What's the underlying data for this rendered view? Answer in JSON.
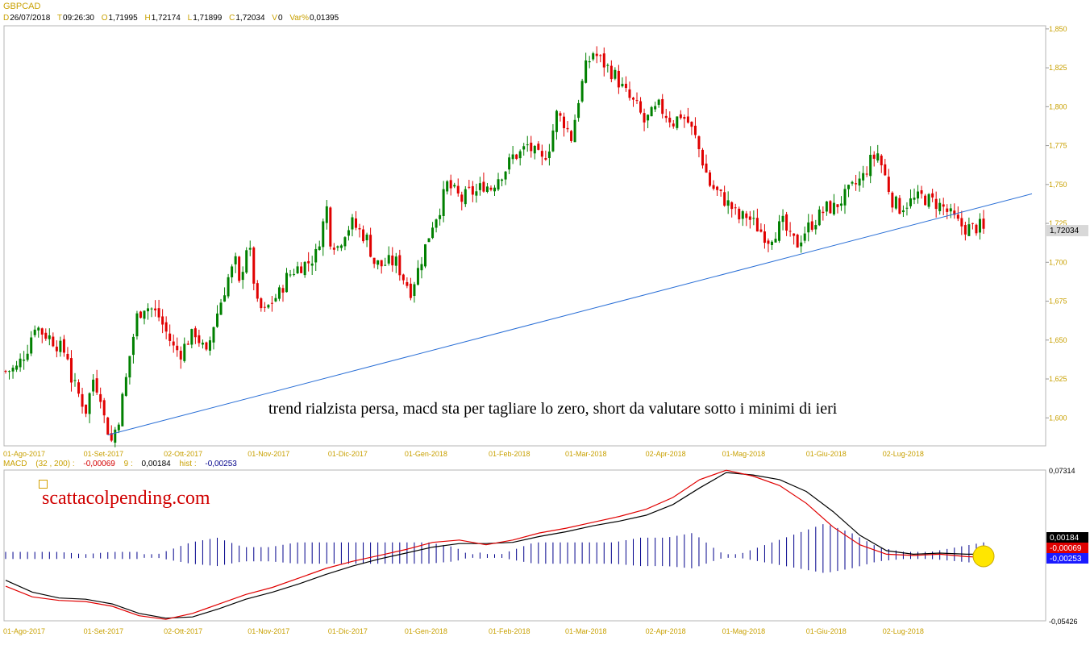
{
  "symbol": "GBPCAD",
  "ohlc": {
    "date_label": "D",
    "date": "26/07/2018",
    "time_label": "T",
    "time": "09:26:30",
    "open_label": "O",
    "open": "1,71995",
    "high_label": "H",
    "high": "1,72174",
    "low_label": "L",
    "low": "1,71899",
    "close_label": "C",
    "close": "1,72034",
    "volume_label": "V",
    "volume": "0",
    "var_label": "Var%",
    "var": "0,01395"
  },
  "macd_header": {
    "name": "MACD",
    "params": "(32 , 200) :",
    "macd_value": "-0,00069",
    "signal_label": "9 :",
    "signal_value": "0,00184",
    "hist_label": "hist :",
    "hist_value": "-0,00253"
  },
  "annotation": "trend rialzista persa, macd sta per tagliare lo zero, short da valutare sotto i minimi di ieri",
  "brand": "scattacolpending.com",
  "colors": {
    "up": "#008000",
    "down": "#e00000",
    "trendline": "#2a6fd6",
    "macd": "#e00000",
    "signal": "#000000",
    "hist": "#00008b",
    "label_text": "#c8a000",
    "highlight": "#ffe600"
  },
  "chart_data": [
    {
      "type": "candlestick",
      "title": "GBPCAD",
      "x_tick_labels": [
        "01-Ago-2017",
        "01-Set-2017",
        "02-Ott-2017",
        "01-Nov-2017",
        "01-Dic-2017",
        "01-Gen-2018",
        "01-Feb-2018",
        "01-Mar-2018",
        "02-Apr-2018",
        "01-Mag-2018",
        "01-Giu-2018",
        "02-Lug-2018"
      ],
      "y_tick_labels": [
        "1,850",
        "1,825",
        "1,800",
        "1,775",
        "1,750",
        "1,725",
        "1,700",
        "1,675",
        "1,650",
        "1,625",
        "1,600"
      ],
      "y_ticks": [
        1.85,
        1.825,
        1.8,
        1.775,
        1.75,
        1.725,
        1.7,
        1.675,
        1.65,
        1.625,
        1.6
      ],
      "ylim": [
        1.582,
        1.852
      ],
      "last_price": 1.72034,
      "last_price_label": "1,72034",
      "close_path": [
        [
          0,
          1.63
        ],
        [
          3,
          1.632
        ],
        [
          6,
          1.645
        ],
        [
          8,
          1.66
        ],
        [
          10,
          1.655
        ],
        [
          12,
          1.652
        ],
        [
          15,
          1.645
        ],
        [
          17,
          1.64
        ],
        [
          18,
          1.625
        ],
        [
          20,
          1.615
        ],
        [
          22,
          1.605
        ],
        [
          24,
          1.625
        ],
        [
          26,
          1.615
        ],
        [
          27,
          1.6
        ],
        [
          29,
          1.585
        ],
        [
          31,
          1.6
        ],
        [
          33,
          1.625
        ],
        [
          34,
          1.64
        ],
        [
          36,
          1.665
        ],
        [
          38,
          1.672
        ],
        [
          40,
          1.67
        ],
        [
          42,
          1.665
        ],
        [
          44,
          1.655
        ],
        [
          46,
          1.645
        ],
        [
          48,
          1.642
        ],
        [
          50,
          1.65
        ],
        [
          52,
          1.655
        ],
        [
          54,
          1.645
        ],
        [
          55,
          1.64
        ],
        [
          57,
          1.66
        ],
        [
          59,
          1.675
        ],
        [
          61,
          1.69
        ],
        [
          63,
          1.7
        ],
        [
          64,
          1.685
        ],
        [
          66,
          1.71
        ],
        [
          67,
          1.705
        ],
        [
          69,
          1.672
        ],
        [
          71,
          1.668
        ],
        [
          73,
          1.675
        ],
        [
          75,
          1.68
        ],
        [
          77,
          1.69
        ],
        [
          79,
          1.695
        ],
        [
          81,
          1.698
        ],
        [
          83,
          1.7
        ],
        [
          85,
          1.705
        ],
        [
          87,
          1.725
        ],
        [
          88,
          1.735
        ],
        [
          89,
          1.715
        ],
        [
          91,
          1.71
        ],
        [
          93,
          1.72
        ],
        [
          95,
          1.725
        ],
        [
          97,
          1.72
        ],
        [
          99,
          1.715
        ],
        [
          101,
          1.7
        ],
        [
          103,
          1.698
        ],
        [
          105,
          1.7
        ],
        [
          107,
          1.7
        ],
        [
          109,
          1.69
        ],
        [
          111,
          1.682
        ],
        [
          113,
          1.695
        ],
        [
          115,
          1.71
        ],
        [
          117,
          1.725
        ],
        [
          119,
          1.735
        ],
        [
          121,
          1.75
        ],
        [
          123,
          1.745
        ],
        [
          125,
          1.74
        ],
        [
          127,
          1.745
        ],
        [
          129,
          1.745
        ],
        [
          131,
          1.75
        ],
        [
          133,
          1.748
        ],
        [
          135,
          1.755
        ],
        [
          137,
          1.76
        ],
        [
          139,
          1.768
        ],
        [
          141,
          1.77
        ],
        [
          143,
          1.775
        ],
        [
          145,
          1.77
        ],
        [
          147,
          1.765
        ],
        [
          149,
          1.775
        ],
        [
          151,
          1.795
        ],
        [
          153,
          1.79
        ],
        [
          155,
          1.78
        ],
        [
          157,
          1.805
        ],
        [
          159,
          1.825
        ],
        [
          161,
          1.835
        ],
        [
          163,
          1.83
        ],
        [
          165,
          1.825
        ],
        [
          167,
          1.82
        ],
        [
          169,
          1.812
        ],
        [
          171,
          1.805
        ],
        [
          173,
          1.8
        ],
        [
          175,
          1.79
        ],
        [
          177,
          1.795
        ],
        [
          179,
          1.8
        ],
        [
          181,
          1.795
        ],
        [
          183,
          1.79
        ],
        [
          185,
          1.795
        ],
        [
          187,
          1.79
        ],
        [
          189,
          1.78
        ],
        [
          191,
          1.765
        ],
        [
          193,
          1.75
        ],
        [
          195,
          1.745
        ],
        [
          197,
          1.74
        ],
        [
          199,
          1.735
        ],
        [
          201,
          1.728
        ],
        [
          203,
          1.73
        ],
        [
          205,
          1.725
        ],
        [
          207,
          1.72
        ],
        [
          209,
          1.715
        ],
        [
          211,
          1.72
        ],
        [
          213,
          1.725
        ],
        [
          215,
          1.715
        ],
        [
          217,
          1.712
        ],
        [
          219,
          1.72
        ],
        [
          221,
          1.725
        ],
        [
          223,
          1.73
        ],
        [
          225,
          1.735
        ],
        [
          227,
          1.735
        ],
        [
          229,
          1.74
        ],
        [
          231,
          1.745
        ],
        [
          233,
          1.75
        ],
        [
          235,
          1.755
        ],
        [
          237,
          1.765
        ],
        [
          239,
          1.77
        ],
        [
          241,
          1.755
        ],
        [
          243,
          1.74
        ],
        [
          245,
          1.735
        ],
        [
          247,
          1.738
        ],
        [
          249,
          1.74
        ],
        [
          251,
          1.742
        ],
        [
          253,
          1.74
        ],
        [
          255,
          1.738
        ],
        [
          257,
          1.735
        ],
        [
          259,
          1.73
        ],
        [
          261,
          1.725
        ],
        [
          263,
          1.722
        ],
        [
          265,
          1.722
        ],
        [
          267,
          1.723
        ],
        [
          268,
          1.72
        ]
      ],
      "trendline": {
        "from": [
          1.589
        ],
        "to": [
          1.744
        ]
      }
    },
    {
      "type": "line",
      "title": "MACD",
      "series": [
        {
          "name": "MACD",
          "values": [
            -0.025,
            -0.034,
            -0.037,
            -0.038,
            -0.042,
            -0.05,
            -0.053,
            -0.048,
            -0.04,
            -0.032,
            -0.026,
            -0.018,
            -0.01,
            -0.004,
            0.001,
            0.006,
            0.012,
            0.014,
            0.01,
            0.014,
            0.02,
            0.024,
            0.029,
            0.034,
            0.04,
            0.05,
            0.065,
            0.073,
            0.068,
            0.06,
            0.045,
            0.025,
            0.01,
            0.002,
            0.001,
            0.002,
            0.0,
            -0.001
          ]
        },
        {
          "name": "Signal",
          "values": [
            -0.02,
            -0.03,
            -0.035,
            -0.036,
            -0.04,
            -0.048,
            -0.052,
            -0.051,
            -0.044,
            -0.036,
            -0.03,
            -0.023,
            -0.015,
            -0.008,
            -0.002,
            0.003,
            0.008,
            0.011,
            0.011,
            0.012,
            0.017,
            0.021,
            0.026,
            0.03,
            0.035,
            0.044,
            0.058,
            0.071,
            0.069,
            0.065,
            0.055,
            0.038,
            0.018,
            0.005,
            0.002,
            0.003,
            0.002,
            0.002
          ]
        },
        {
          "name": "hist",
          "values": [
            -0.001,
            -0.001,
            -0.001,
            -0.0005,
            -0.001,
            -0.001,
            0.001,
            0.003,
            0.004,
            0.002,
            0.002,
            0.003,
            0.003,
            0.003,
            0.003,
            0.003,
            0.003,
            0.002,
            -0.001,
            0.001,
            0.003,
            0.003,
            0.003,
            0.003,
            0.004,
            0.004,
            0.005,
            0.001,
            -0.001,
            -0.003,
            -0.005,
            -0.007,
            -0.005,
            -0.002,
            -0.001,
            -0.001,
            -0.002,
            -0.003
          ]
        }
      ],
      "y_tick_labels": [
        "0,07314",
        "-0,05426"
      ],
      "ylim": [
        -0.05426,
        0.07314
      ],
      "x_tick_labels": [
        "01-Ago-2017",
        "01-Set-2017",
        "02-Ott-2017",
        "01-Nov-2017",
        "01-Dic-2017",
        "01-Gen-2018",
        "01-Feb-2018",
        "01-Mar-2018",
        "02-Apr-2018",
        "01-Mag-2018",
        "01-Giu-2018",
        "02-Lug-2018"
      ],
      "badges": [
        {
          "label": "0,00184",
          "bg": "#000000"
        },
        {
          "label": "-0,00069",
          "bg": "#e00000"
        },
        {
          "label": "-0,00253",
          "bg": "#1a1aff"
        }
      ]
    }
  ]
}
